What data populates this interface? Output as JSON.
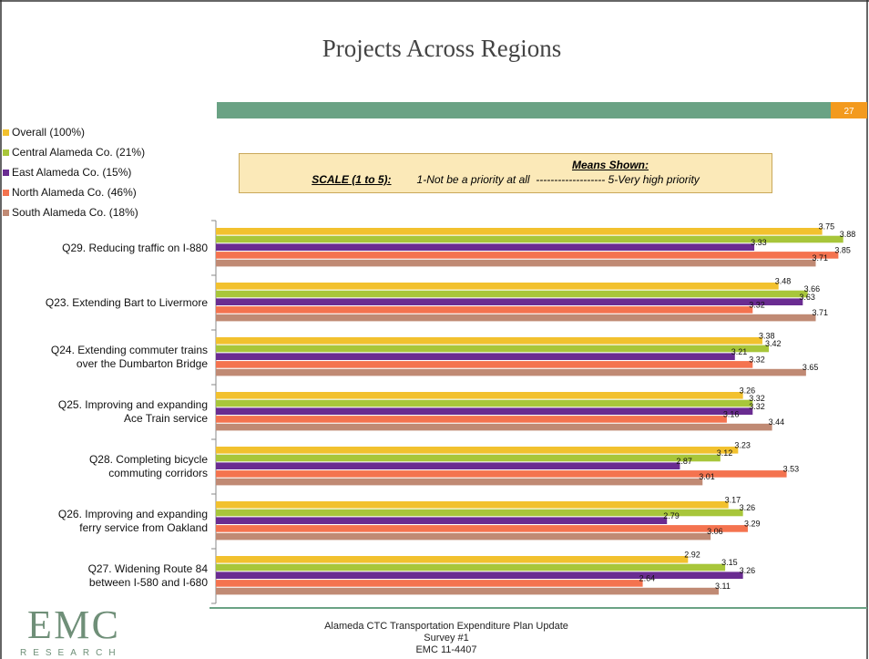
{
  "title": "Projects Across Regions",
  "page_number": "27",
  "means_box": {
    "heading": "Means Shown:",
    "scale_label": "SCALE (1 to 5):",
    "scale_text": "1-Not be a priority at all  ------------------- 5-Very high priority"
  },
  "footer": {
    "lines": [
      "Alameda CTC Transportation Expenditure Plan Update",
      "Survey #1",
      "EMC 11-4407"
    ],
    "logo": "EMC",
    "logo_sub": "RESEARCH"
  },
  "chart_data": {
    "type": "bar",
    "orientation": "horizontal",
    "categories": [
      "Q29. Reducing traffic on I-880",
      "Q23. Extending Bart to Livermore",
      "Q24. Extending commuter trains\nover the Dumbarton Bridge",
      "Q25. Improving and expanding\nAce Train service",
      "Q28. Completing bicycle\ncommuting corridors",
      "Q26. Improving and expanding\nferry service from Oakland",
      "Q27. Widening Route 84\nbetween I-580 and I-680"
    ],
    "series": [
      {
        "name": "Overall (100%)",
        "color": "#f2c12e",
        "values": [
          3.75,
          3.48,
          3.38,
          3.26,
          3.23,
          3.17,
          2.92
        ]
      },
      {
        "name": "Central Alameda Co. (21%)",
        "color": "#a8c63a",
        "values": [
          3.88,
          3.66,
          3.42,
          3.32,
          3.12,
          3.26,
          3.15
        ]
      },
      {
        "name": "East Alameda Co. (15%)",
        "color": "#6a2c91",
        "values": [
          3.33,
          3.63,
          3.21,
          3.32,
          2.87,
          2.79,
          3.26
        ]
      },
      {
        "name": "North Alameda Co. (46%)",
        "color": "#f4734f",
        "values": [
          3.85,
          3.32,
          3.32,
          3.16,
          3.53,
          3.29,
          2.64
        ]
      },
      {
        "name": "South Alameda Co. (18%)",
        "color": "#c08a74",
        "values": [
          3.71,
          3.71,
          3.65,
          3.44,
          3.01,
          3.06,
          3.11
        ]
      }
    ],
    "xlim": [
      0,
      4
    ]
  }
}
